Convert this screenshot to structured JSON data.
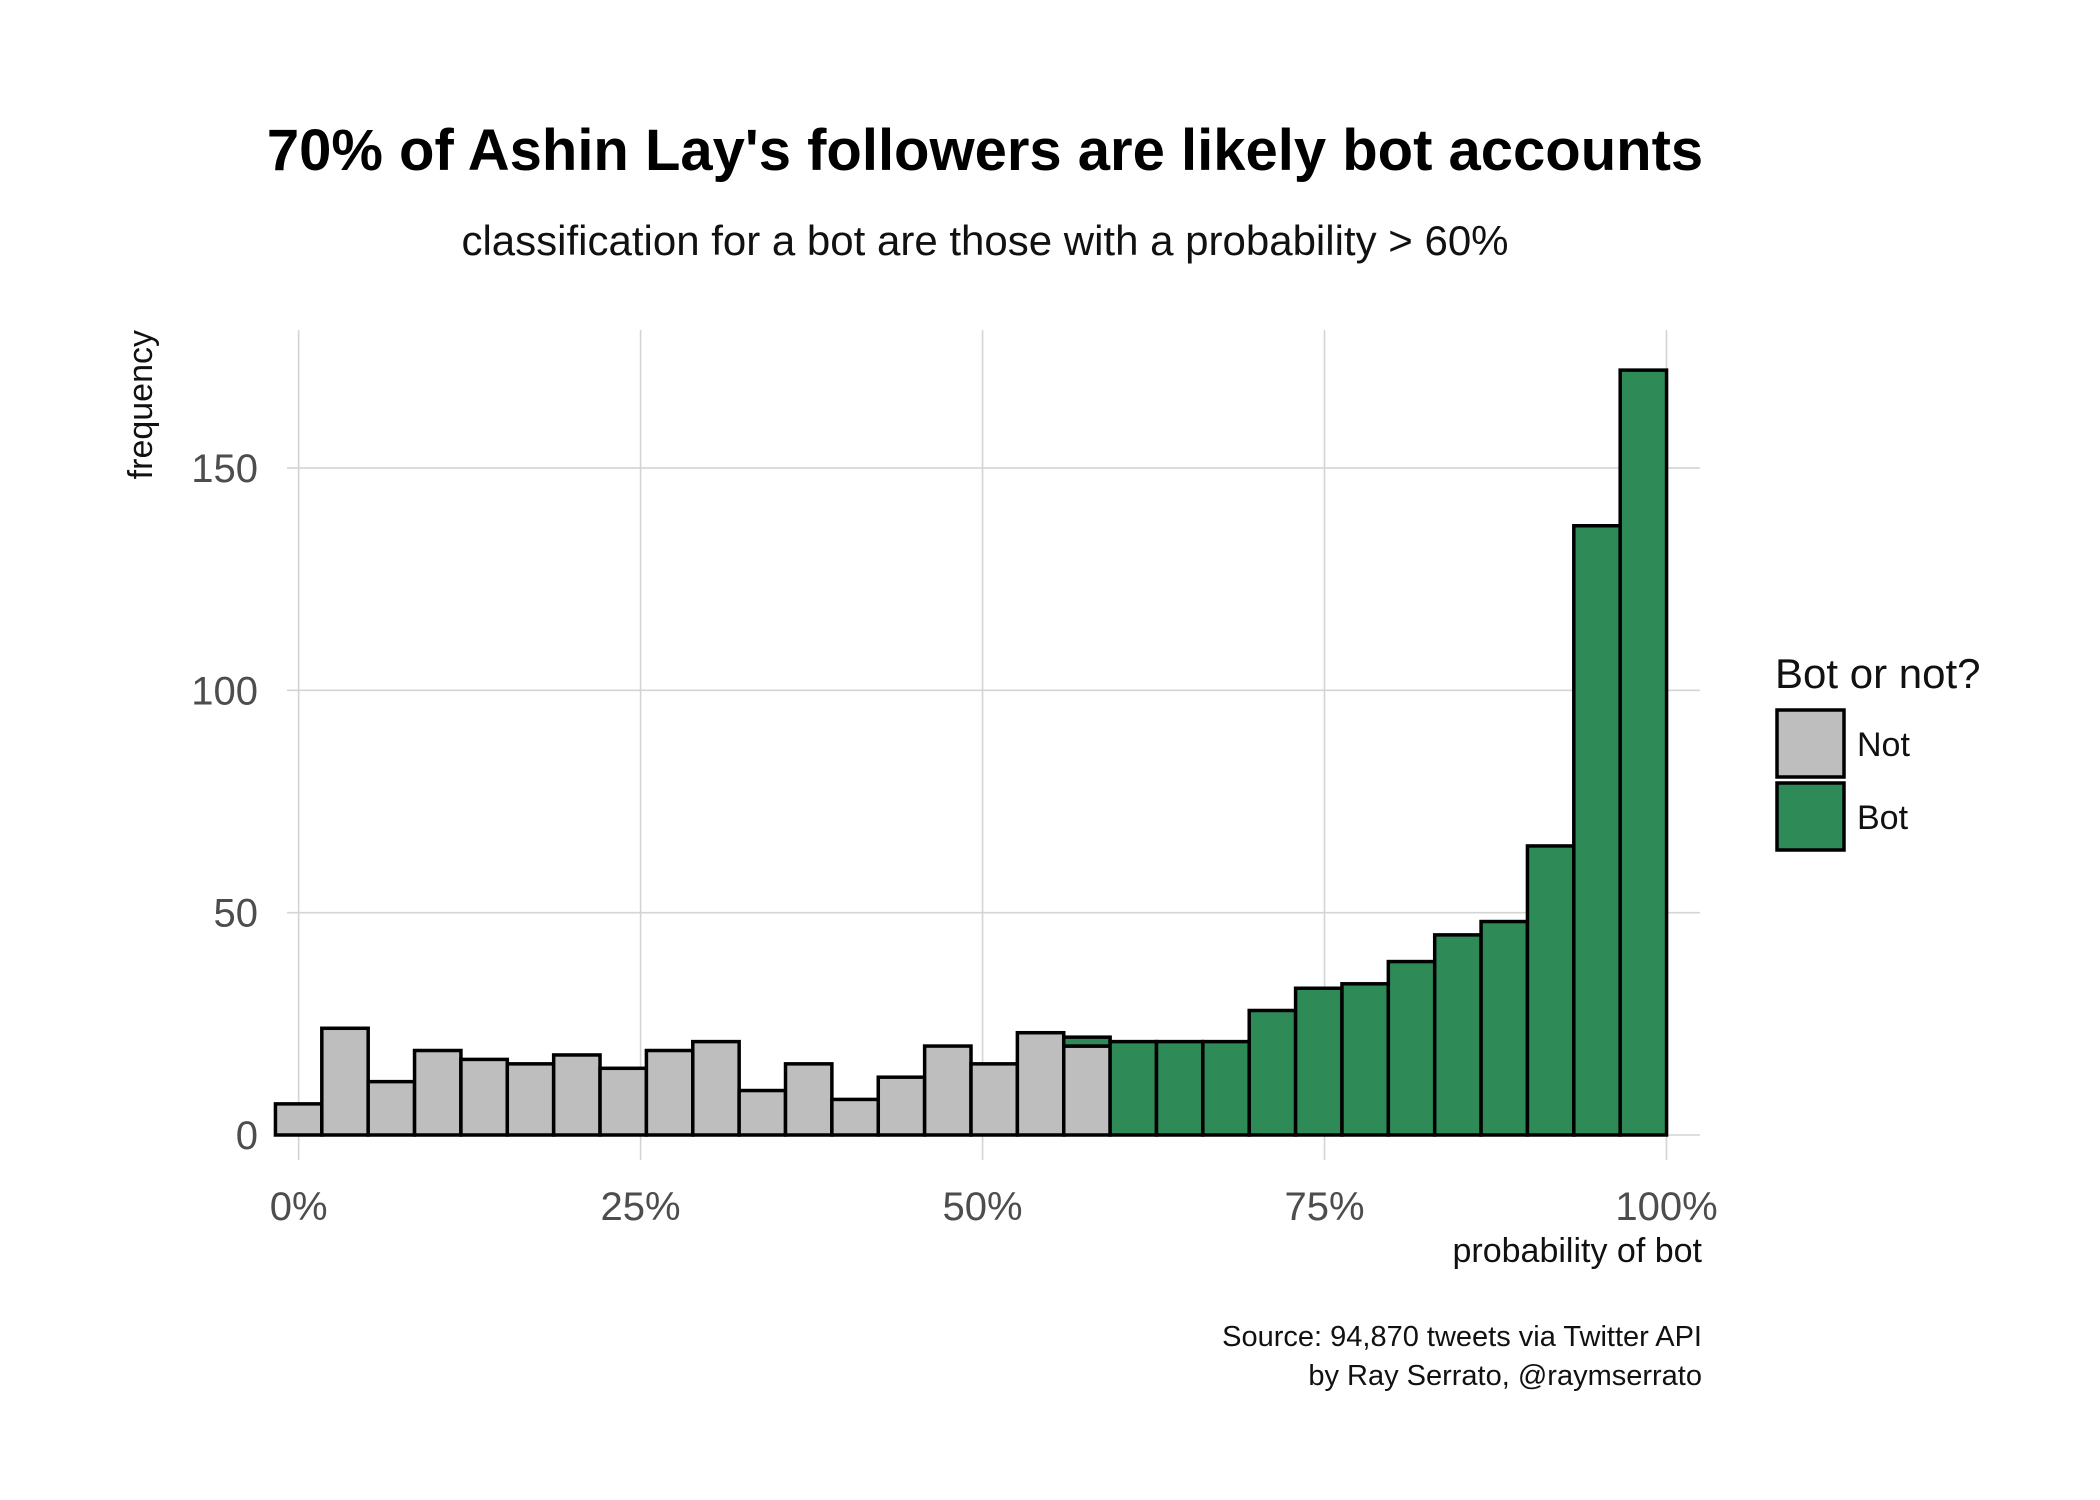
{
  "chart_data": {
    "type": "bar",
    "title": "70% of Ashin Lay's followers are likely bot accounts",
    "subtitle": "classification for a bot are those with a probability > 60%",
    "xlabel": "probability of bot",
    "ylabel": "frequency",
    "caption_lines": [
      "Source: 94,870 tweets via Twitter API",
      "by Ray Serrato, @raymserrato"
    ],
    "x_ticks": [
      "0%",
      "25%",
      "50%",
      "75%",
      "100%"
    ],
    "x_tick_values": [
      0,
      0.25,
      0.5,
      0.75,
      1.0
    ],
    "y_ticks": [
      "0",
      "50",
      "100",
      "150"
    ],
    "y_tick_values": [
      0,
      50,
      100,
      150
    ],
    "xlim": [
      -0.0085,
      1.0245
    ],
    "ylim": [
      0,
      180
    ],
    "bin_width": 0.0339,
    "bin_centers": [
      0.0,
      0.0339,
      0.0678,
      0.1017,
      0.1356,
      0.1695,
      0.2034,
      0.2373,
      0.2712,
      0.3051,
      0.339,
      0.3729,
      0.4068,
      0.4407,
      0.4746,
      0.5085,
      0.5424,
      0.5763,
      0.6102,
      0.6441,
      0.678,
      0.7119,
      0.7458,
      0.7797,
      0.8136,
      0.8475,
      0.8814,
      0.9153,
      0.9492,
      0.9831
    ],
    "grid": true,
    "legend": {
      "title": "Bot or not?",
      "placement": "right"
    },
    "series": [
      {
        "name": "Not",
        "color": "#bebebe",
        "values": [
          7,
          24,
          12,
          19,
          17,
          16,
          18,
          15,
          19,
          21,
          10,
          16,
          8,
          13,
          20,
          16,
          23,
          20,
          0,
          0,
          0,
          0,
          0,
          0,
          0,
          0,
          0,
          0,
          0,
          0
        ]
      },
      {
        "name": "Bot",
        "color": "#2e8b57",
        "values": [
          0,
          0,
          0,
          0,
          0,
          0,
          0,
          0,
          0,
          0,
          0,
          0,
          0,
          0,
          0,
          0,
          0,
          2,
          21,
          21,
          21,
          28,
          33,
          34,
          39,
          45,
          48,
          65,
          137,
          172
        ]
      }
    ]
  }
}
